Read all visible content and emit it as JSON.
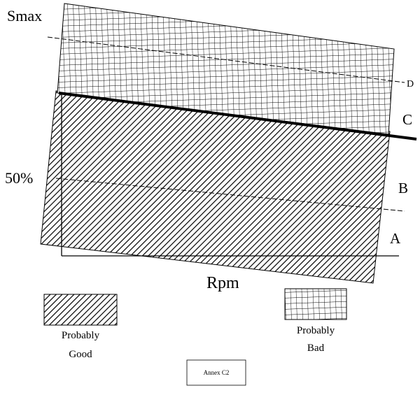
{
  "diagram": {
    "y_axis_top_label": "Smax",
    "y_axis_mid_label": "50%",
    "x_axis_label": "Rpm",
    "line_labels": [
      "A",
      "B",
      "C",
      "D"
    ]
  },
  "legend": [
    {
      "id": "good",
      "line1": "Probably",
      "line2": "Good",
      "pattern": "diagonal-hatch"
    },
    {
      "id": "bad",
      "line1": "Probably",
      "line2": "Bad",
      "pattern": "grid"
    }
  ],
  "caption": "Annex C2"
}
